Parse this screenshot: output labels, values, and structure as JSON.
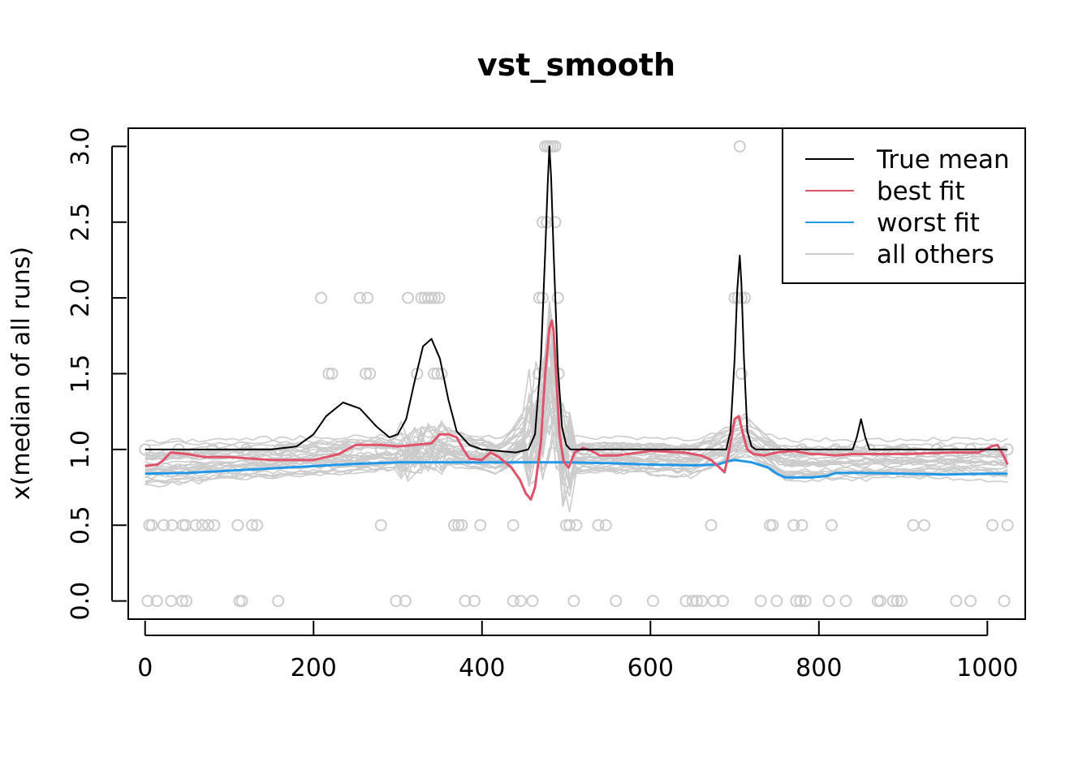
{
  "chart_data": {
    "type": "line",
    "title": "vst_smooth",
    "xlabel": "",
    "ylabel": "x(median of all runs)",
    "xlim": [
      -20,
      1045
    ],
    "ylim": [
      -0.12,
      3.12
    ],
    "x_ticks": [
      0,
      200,
      400,
      600,
      800,
      1000
    ],
    "x_tick_labels": [
      "0",
      "200",
      "400",
      "600",
      "800",
      "1000"
    ],
    "y_ticks": [
      0,
      0.5,
      1,
      1.5,
      2,
      2.5,
      3
    ],
    "y_tick_labels": [
      "0.0",
      "0.5",
      "1.0",
      "1.5",
      "2.0",
      "2.5",
      "3.0"
    ],
    "legend": {
      "position": "top-right",
      "entries": [
        {
          "label": "True mean",
          "color": "#000000"
        },
        {
          "label": "best fit",
          "color": "#DF536B"
        },
        {
          "label": "worst fit",
          "color": "#2297E6"
        },
        {
          "label": "all others",
          "color": "#CCCCCC"
        }
      ]
    },
    "series": [
      {
        "name": "True mean",
        "color": "#000000",
        "x": [
          0,
          150,
          180,
          200,
          215,
          235,
          255,
          275,
          290,
          300,
          310,
          320,
          330,
          340,
          350,
          360,
          370,
          385,
          400,
          440,
          455,
          463,
          470,
          475,
          478,
          480,
          482,
          485,
          490,
          495,
          500,
          505,
          510,
          690,
          695,
          700,
          703,
          706,
          708,
          711,
          715,
          720,
          725,
          840,
          845,
          850,
          855,
          860,
          1024
        ],
        "values": [
          1.0,
          1.0,
          1.02,
          1.1,
          1.22,
          1.31,
          1.27,
          1.15,
          1.08,
          1.1,
          1.2,
          1.45,
          1.68,
          1.73,
          1.6,
          1.33,
          1.12,
          1.03,
          1.0,
          0.98,
          1.0,
          1.1,
          1.6,
          2.3,
          2.75,
          3.0,
          2.8,
          2.3,
          1.55,
          1.15,
          1.03,
          1.0,
          1.0,
          1.0,
          1.12,
          1.6,
          2.05,
          2.28,
          2.1,
          1.6,
          1.12,
          1.02,
          1.0,
          1.0,
          1.08,
          1.2,
          1.08,
          1.0,
          1.0
        ]
      },
      {
        "name": "best fit",
        "color": "#DF536B",
        "x": [
          0,
          15,
          22,
          30,
          50,
          70,
          100,
          150,
          200,
          230,
          250,
          280,
          300,
          320,
          340,
          350,
          360,
          370,
          378,
          385,
          400,
          410,
          420,
          435,
          445,
          452,
          458,
          463,
          470,
          475,
          480,
          483,
          485,
          488,
          492,
          497,
          503,
          510,
          520,
          530,
          540,
          560,
          600,
          640,
          660,
          672,
          680,
          688,
          692,
          697,
          700,
          705,
          710,
          715,
          722,
          735,
          750,
          770,
          790,
          800,
          820,
          840,
          860,
          900,
          960,
          990,
          1005,
          1012,
          1020,
          1024
        ],
        "values": [
          0.89,
          0.9,
          0.93,
          0.98,
          0.97,
          0.95,
          0.95,
          0.93,
          0.93,
          0.97,
          1.03,
          1.03,
          1.02,
          1.03,
          1.04,
          1.1,
          1.1,
          1.08,
          1.0,
          0.94,
          0.93,
          0.98,
          0.95,
          0.88,
          0.8,
          0.71,
          0.67,
          0.75,
          1.05,
          1.5,
          1.8,
          1.85,
          1.78,
          1.5,
          1.1,
          0.92,
          0.88,
          0.98,
          1.01,
          0.99,
          0.96,
          0.96,
          0.99,
          0.98,
          0.96,
          0.93,
          0.89,
          0.85,
          0.95,
          1.1,
          1.2,
          1.22,
          1.1,
          1.0,
          0.97,
          0.96,
          0.98,
          0.99,
          0.97,
          0.97,
          0.96,
          0.97,
          0.97,
          0.97,
          0.98,
          0.98,
          1.02,
          1.03,
          0.95,
          0.9
        ]
      },
      {
        "name": "worst fit",
        "color": "#2297E6",
        "x": [
          0,
          50,
          100,
          150,
          200,
          250,
          300,
          350,
          400,
          450,
          500,
          550,
          600,
          650,
          680,
          690,
          700,
          720,
          740,
          750,
          760,
          790,
          810,
          820,
          850,
          900,
          950,
          1000,
          1024
        ],
        "values": [
          0.84,
          0.845,
          0.86,
          0.875,
          0.89,
          0.905,
          0.915,
          0.915,
          0.915,
          0.915,
          0.915,
          0.91,
          0.9,
          0.895,
          0.9,
          0.92,
          0.93,
          0.915,
          0.88,
          0.84,
          0.815,
          0.815,
          0.825,
          0.845,
          0.845,
          0.84,
          0.835,
          0.84,
          0.84
        ]
      }
    ],
    "background_runs": {
      "name": "all others",
      "color": "#CCCCCC",
      "x": [
        0,
        100,
        200,
        300,
        360,
        420,
        470,
        481,
        495,
        560,
        650,
        700,
        710,
        760,
        850,
        950,
        1024
      ],
      "median_values": [
        0.9,
        0.93,
        0.95,
        0.98,
        1.02,
        0.95,
        1.2,
        1.55,
        0.95,
        0.96,
        0.94,
        1.05,
        1.1,
        0.92,
        0.93,
        0.94,
        0.92
      ]
    },
    "observations": {
      "name": "observed points",
      "color": "#CCCCCC",
      "points": [
        {
          "x": 0,
          "y": 1.0
        },
        {
          "x": 40,
          "y": 1.0
        },
        {
          "x": 80,
          "y": 1.0
        },
        {
          "x": 120,
          "y": 1.0
        },
        {
          "x": 160,
          "y": 1.0
        },
        {
          "x": 200,
          "y": 1.0
        },
        {
          "x": 240,
          "y": 1.0
        },
        {
          "x": 280,
          "y": 1.0
        },
        {
          "x": 320,
          "y": 1.0
        },
        {
          "x": 360,
          "y": 1.0
        },
        {
          "x": 400,
          "y": 1.0
        },
        {
          "x": 440,
          "y": 1.0
        },
        {
          "x": 520,
          "y": 1.0
        },
        {
          "x": 560,
          "y": 1.0
        },
        {
          "x": 600,
          "y": 1.0
        },
        {
          "x": 640,
          "y": 1.0
        },
        {
          "x": 680,
          "y": 1.0
        },
        {
          "x": 740,
          "y": 1.0
        },
        {
          "x": 780,
          "y": 1.0
        },
        {
          "x": 820,
          "y": 1.0
        },
        {
          "x": 860,
          "y": 1.0
        },
        {
          "x": 900,
          "y": 1.0
        },
        {
          "x": 940,
          "y": 1.0
        },
        {
          "x": 980,
          "y": 1.0
        },
        {
          "x": 1024,
          "y": 1.0
        },
        {
          "x": 209,
          "y": 2.0
        },
        {
          "x": 255,
          "y": 2.0
        },
        {
          "x": 264,
          "y": 2.0
        },
        {
          "x": 312,
          "y": 2.0
        },
        {
          "x": 328,
          "y": 2.0
        },
        {
          "x": 332,
          "y": 2.0
        },
        {
          "x": 336,
          "y": 2.0
        },
        {
          "x": 340,
          "y": 2.0
        },
        {
          "x": 344,
          "y": 2.0
        },
        {
          "x": 349,
          "y": 2.0
        },
        {
          "x": 468,
          "y": 2.0
        },
        {
          "x": 472,
          "y": 2.0
        },
        {
          "x": 490,
          "y": 2.0
        },
        {
          "x": 700,
          "y": 2.0
        },
        {
          "x": 704,
          "y": 2.0
        },
        {
          "x": 708,
          "y": 2.0
        },
        {
          "x": 712,
          "y": 2.0
        },
        {
          "x": 218,
          "y": 1.5
        },
        {
          "x": 222,
          "y": 1.5
        },
        {
          "x": 262,
          "y": 1.5
        },
        {
          "x": 267,
          "y": 1.5
        },
        {
          "x": 323,
          "y": 1.5
        },
        {
          "x": 343,
          "y": 1.5
        },
        {
          "x": 347,
          "y": 1.5
        },
        {
          "x": 352,
          "y": 1.5
        },
        {
          "x": 467,
          "y": 1.5
        },
        {
          "x": 491,
          "y": 1.5
        },
        {
          "x": 708,
          "y": 1.5
        },
        {
          "x": 475,
          "y": 3.0
        },
        {
          "x": 478,
          "y": 3.0
        },
        {
          "x": 481,
          "y": 3.0
        },
        {
          "x": 484,
          "y": 3.0
        },
        {
          "x": 487,
          "y": 3.0
        },
        {
          "x": 706,
          "y": 3.0
        },
        {
          "x": 472,
          "y": 2.5
        },
        {
          "x": 477,
          "y": 2.5
        },
        {
          "x": 487,
          "y": 2.5
        },
        {
          "x": 5,
          "y": 0.5
        },
        {
          "x": 8,
          "y": 0.5
        },
        {
          "x": 22,
          "y": 0.5
        },
        {
          "x": 32,
          "y": 0.5
        },
        {
          "x": 45,
          "y": 0.5
        },
        {
          "x": 48,
          "y": 0.5
        },
        {
          "x": 60,
          "y": 0.5
        },
        {
          "x": 68,
          "y": 0.5
        },
        {
          "x": 75,
          "y": 0.5
        },
        {
          "x": 82,
          "y": 0.5
        },
        {
          "x": 110,
          "y": 0.5
        },
        {
          "x": 127,
          "y": 0.5
        },
        {
          "x": 133,
          "y": 0.5
        },
        {
          "x": 280,
          "y": 0.5
        },
        {
          "x": 367,
          "y": 0.5
        },
        {
          "x": 372,
          "y": 0.5
        },
        {
          "x": 376,
          "y": 0.5
        },
        {
          "x": 398,
          "y": 0.5
        },
        {
          "x": 437,
          "y": 0.5
        },
        {
          "x": 500,
          "y": 0.5
        },
        {
          "x": 504,
          "y": 0.5
        },
        {
          "x": 512,
          "y": 0.5
        },
        {
          "x": 538,
          "y": 0.5
        },
        {
          "x": 547,
          "y": 0.5
        },
        {
          "x": 672,
          "y": 0.5
        },
        {
          "x": 742,
          "y": 0.5
        },
        {
          "x": 745,
          "y": 0.5
        },
        {
          "x": 770,
          "y": 0.5
        },
        {
          "x": 780,
          "y": 0.5
        },
        {
          "x": 815,
          "y": 0.5
        },
        {
          "x": 912,
          "y": 0.5
        },
        {
          "x": 925,
          "y": 0.5
        },
        {
          "x": 1006,
          "y": 0.5
        },
        {
          "x": 1024,
          "y": 0.5
        },
        {
          "x": 3,
          "y": 0.0
        },
        {
          "x": 14,
          "y": 0.0
        },
        {
          "x": 31,
          "y": 0.0
        },
        {
          "x": 44,
          "y": 0.0
        },
        {
          "x": 49,
          "y": 0.0
        },
        {
          "x": 112,
          "y": 0.0
        },
        {
          "x": 115,
          "y": 0.0
        },
        {
          "x": 158,
          "y": 0.0
        },
        {
          "x": 298,
          "y": 0.0
        },
        {
          "x": 309,
          "y": 0.0
        },
        {
          "x": 380,
          "y": 0.0
        },
        {
          "x": 391,
          "y": 0.0
        },
        {
          "x": 437,
          "y": 0.0
        },
        {
          "x": 446,
          "y": 0.0
        },
        {
          "x": 460,
          "y": 0.0
        },
        {
          "x": 509,
          "y": 0.0
        },
        {
          "x": 559,
          "y": 0.0
        },
        {
          "x": 603,
          "y": 0.0
        },
        {
          "x": 642,
          "y": 0.0
        },
        {
          "x": 650,
          "y": 0.0
        },
        {
          "x": 655,
          "y": 0.0
        },
        {
          "x": 661,
          "y": 0.0
        },
        {
          "x": 675,
          "y": 0.0
        },
        {
          "x": 686,
          "y": 0.0
        },
        {
          "x": 731,
          "y": 0.0
        },
        {
          "x": 750,
          "y": 0.0
        },
        {
          "x": 773,
          "y": 0.0
        },
        {
          "x": 778,
          "y": 0.0
        },
        {
          "x": 784,
          "y": 0.0
        },
        {
          "x": 812,
          "y": 0.0
        },
        {
          "x": 832,
          "y": 0.0
        },
        {
          "x": 870,
          "y": 0.0
        },
        {
          "x": 873,
          "y": 0.0
        },
        {
          "x": 888,
          "y": 0.0
        },
        {
          "x": 893,
          "y": 0.0
        },
        {
          "x": 898,
          "y": 0.0
        },
        {
          "x": 963,
          "y": 0.0
        },
        {
          "x": 980,
          "y": 0.0
        },
        {
          "x": 1020,
          "y": 0.0
        }
      ]
    }
  }
}
